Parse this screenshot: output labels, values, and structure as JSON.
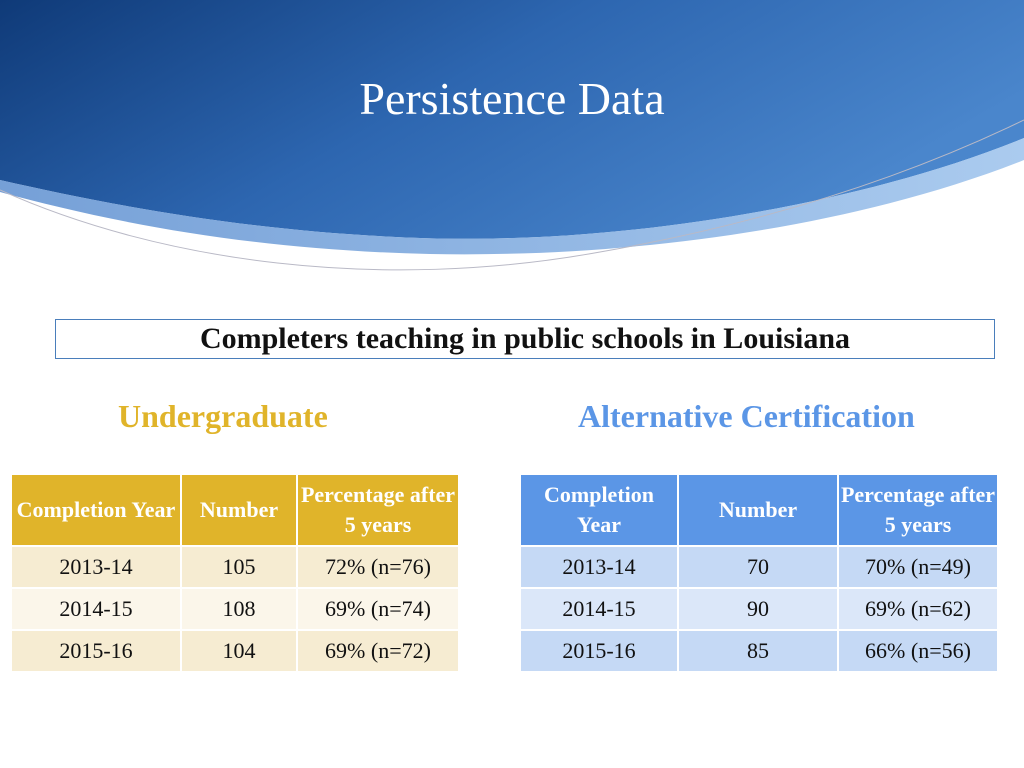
{
  "slide": {
    "title": "Persistence Data",
    "subtitle": "Completers teaching in public schools in Louisiana"
  },
  "colors": {
    "header_blue_dark": "#123e7a",
    "header_blue_light": "#3f78c0",
    "undergrad_accent": "#e0b42a",
    "undergrad_row_odd": "#f6ecd2",
    "undergrad_row_even": "#fbf6ea",
    "altcert_accent": "#5b96e6",
    "altcert_row_odd": "#c5d9f5",
    "altcert_row_even": "#dbe7f9"
  },
  "undergraduate": {
    "heading": "Undergraduate",
    "headers": [
      "Completion Year",
      "Number",
      "Percentage after 5 years"
    ],
    "rows": [
      [
        "2013-14",
        "105",
        "72% (n=76)"
      ],
      [
        "2014-15",
        "108",
        "69% (n=74)"
      ],
      [
        "2015-16",
        "104",
        "69% (n=72)"
      ]
    ]
  },
  "alternative_certification": {
    "heading": "Alternative Certification",
    "headers": [
      "Completion Year",
      "Number",
      "Percentage after 5 years"
    ],
    "rows": [
      [
        "2013-14",
        "70",
        "70% (n=49)"
      ],
      [
        "2014-15",
        "90",
        "69% (n=62)"
      ],
      [
        "2015-16",
        "85",
        "66% (n=56)"
      ]
    ]
  }
}
